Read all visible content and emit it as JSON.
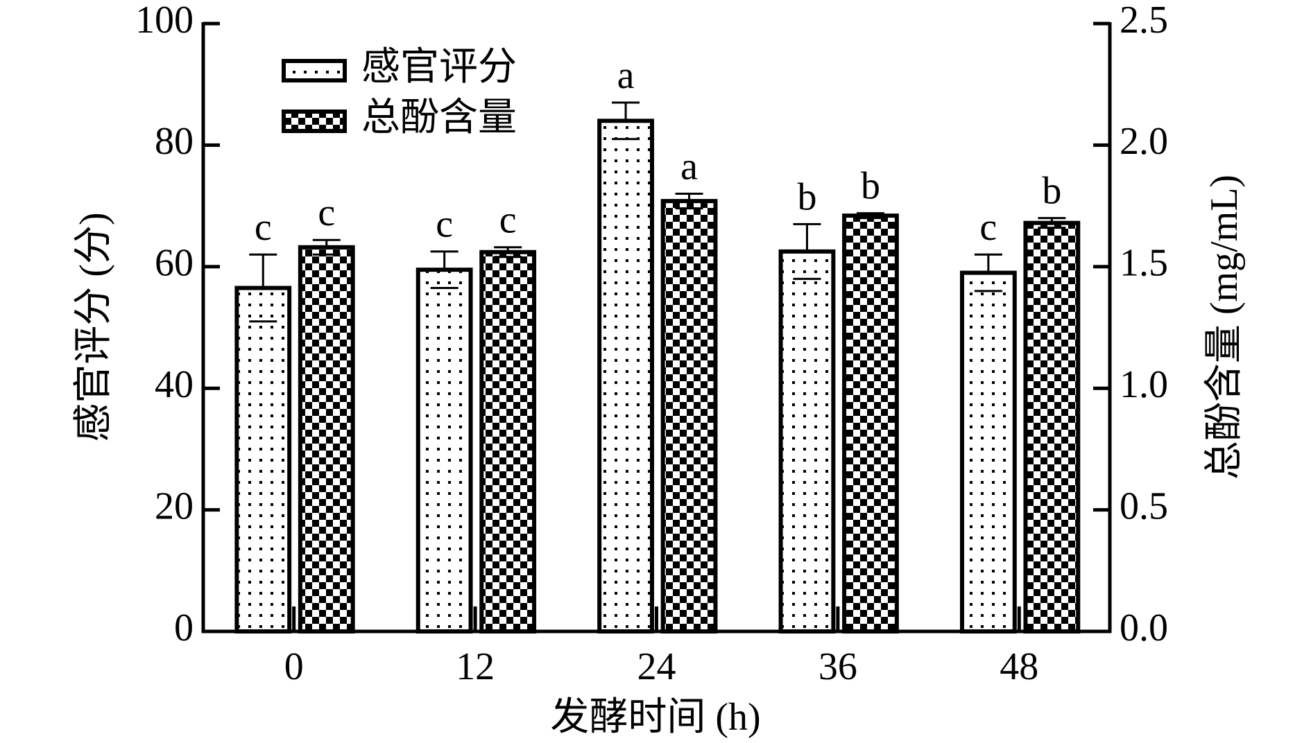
{
  "chart_data": {
    "type": "bar",
    "xlabel": "发酵时间 (h)",
    "ylabel": "感官评分 (分)",
    "y2label": "总酚含量 (mg/mL)",
    "categories": [
      "0",
      "12",
      "24",
      "36",
      "48"
    ],
    "series": [
      {
        "name": "感官评分",
        "color": "#000000",
        "pattern": "dots",
        "axis": "y",
        "values": [
          56.5,
          59.5,
          84,
          62.5,
          59
        ],
        "errors": [
          5.5,
          3,
          3,
          4.5,
          3
        ],
        "letters": [
          "c",
          "c",
          "a",
          "b",
          "c"
        ]
      },
      {
        "name": "总酚含量",
        "color": "#000000",
        "pattern": "checker",
        "axis": "y2",
        "values": [
          1.58,
          1.56,
          1.77,
          1.71,
          1.68
        ],
        "errors": [
          0.03,
          0.02,
          0.03,
          0.01,
          0.02
        ],
        "letters": [
          "c",
          "c",
          "a",
          "b",
          "b"
        ]
      }
    ],
    "ylim": [
      0,
      100
    ],
    "yticks": [
      0,
      20,
      40,
      60,
      80,
      100
    ],
    "y2lim": [
      0,
      2.5
    ],
    "y2ticks": [
      {
        "value": 0,
        "label": "0.0"
      },
      {
        "value": 0.5,
        "label": "0.5"
      },
      {
        "value": 1,
        "label": "1.0"
      },
      {
        "value": 1.5,
        "label": "1.5"
      },
      {
        "value": 2,
        "label": "2.0"
      },
      {
        "value": 2.5,
        "label": "2.5"
      }
    ],
    "legend": "upper left",
    "grid": false
  }
}
